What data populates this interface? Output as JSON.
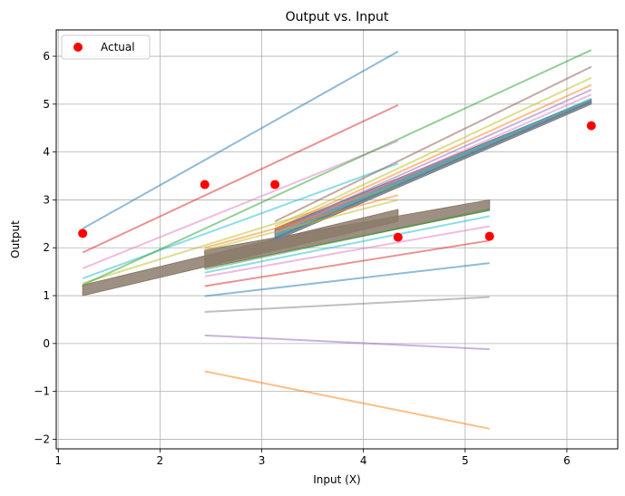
{
  "chart_data": {
    "type": "scatter",
    "title": "Output vs. Input",
    "xlabel": "Input (X)",
    "ylabel": "Output",
    "xlim": [
      0.98,
      6.5
    ],
    "ylim": [
      -2.2,
      6.55
    ],
    "xticks": [
      1,
      2,
      3,
      4,
      5,
      6
    ],
    "yticks": [
      -2,
      -1,
      0,
      1,
      2,
      3,
      4,
      5,
      6
    ],
    "grid": true,
    "legend": {
      "position": "top-left",
      "entries": [
        "Actual"
      ]
    },
    "series": [
      {
        "name": "Actual",
        "kind": "scatter",
        "color": "#ff0000",
        "points": [
          [
            1.24,
            2.3
          ],
          [
            2.44,
            3.32
          ],
          [
            3.13,
            3.32
          ],
          [
            4.34,
            2.22
          ],
          [
            5.24,
            2.24
          ],
          [
            6.24,
            4.55
          ]
        ]
      }
    ],
    "fit_lines": [
      {
        "x": [
          1.24,
          4.34
        ],
        "y": [
          2.4,
          6.1
        ],
        "color": "#1f77b4"
      },
      {
        "x": [
          1.24,
          4.34
        ],
        "y": [
          1.9,
          4.98
        ],
        "color": "#d62728"
      },
      {
        "x": [
          1.24,
          4.34
        ],
        "y": [
          1.57,
          4.23
        ],
        "color": "#e377c2"
      },
      {
        "x": [
          1.24,
          4.34
        ],
        "y": [
          1.36,
          3.76
        ],
        "color": "#17becf"
      },
      {
        "x": [
          1.24,
          4.34
        ],
        "y": [
          1.26,
          3.3
        ],
        "color": "#bcbd22"
      },
      {
        "x": [
          1.24,
          6.24
        ],
        "y": [
          1.22,
          6.13
        ],
        "color": "#2ca02c"
      },
      {
        "x": [
          3.13,
          6.24
        ],
        "y": [
          2.55,
          5.78
        ],
        "color": "#8c564b"
      },
      {
        "x": [
          3.13,
          6.24
        ],
        "y": [
          2.45,
          5.55
        ],
        "color": "#bcbd22"
      },
      {
        "x": [
          3.13,
          6.24
        ],
        "y": [
          2.4,
          5.4
        ],
        "color": "#ff7f0e"
      },
      {
        "x": [
          3.13,
          6.24
        ],
        "y": [
          2.35,
          5.3
        ],
        "color": "#9467bd"
      },
      {
        "x": [
          3.13,
          6.24
        ],
        "y": [
          2.3,
          5.2
        ],
        "color": "#e377c2"
      },
      {
        "x": [
          3.13,
          6.24
        ],
        "y": [
          2.25,
          5.12
        ],
        "color": "#17becf"
      },
      {
        "x": [
          3.13,
          6.24
        ],
        "y": [
          2.2,
          5.05
        ],
        "color": "#1f77b4"
      },
      {
        "x": [
          2.44,
          4.34
        ],
        "y": [
          2.0,
          3.1
        ],
        "color": "#ff7f0e"
      },
      {
        "x": [
          2.44,
          4.34
        ],
        "y": [
          1.95,
          3.0
        ],
        "color": "#bcbd22"
      },
      {
        "x": [
          2.44,
          5.24
        ],
        "y": [
          1.55,
          2.8
        ],
        "color": "#2ca02c"
      },
      {
        "x": [
          2.44,
          5.24
        ],
        "y": [
          1.48,
          2.66
        ],
        "color": "#17becf"
      },
      {
        "x": [
          2.44,
          5.24
        ],
        "y": [
          1.4,
          2.45
        ],
        "color": "#e377c2"
      },
      {
        "x": [
          2.44,
          5.24
        ],
        "y": [
          1.2,
          2.15
        ],
        "color": "#d62728"
      },
      {
        "x": [
          2.44,
          5.24
        ],
        "y": [
          0.99,
          1.68
        ],
        "color": "#1f77b4"
      },
      {
        "x": [
          2.44,
          5.24
        ],
        "y": [
          0.66,
          0.97
        ],
        "color": "#7f7f7f"
      },
      {
        "x": [
          2.44,
          5.24
        ],
        "y": [
          0.17,
          -0.12
        ],
        "color": "#9467bd"
      },
      {
        "x": [
          2.44,
          5.24
        ],
        "y": [
          -0.58,
          -1.78
        ],
        "color": "#ff7f0e"
      }
    ],
    "bands": [
      {
        "x": [
          1.24,
          4.34
        ],
        "y_low": [
          1.0,
          2.55
        ],
        "y_high": [
          1.22,
          2.8
        ],
        "color": "#8c7b6b"
      },
      {
        "x": [
          2.44,
          5.24
        ],
        "y_low": [
          1.58,
          2.78
        ],
        "y_high": [
          1.95,
          3.0
        ],
        "color": "#8c7b6b"
      },
      {
        "x": [
          3.13,
          6.24
        ],
        "y_low": [
          2.15,
          5.0
        ],
        "y_high": [
          2.4,
          5.1
        ],
        "color": "#7f7f7f"
      }
    ]
  }
}
